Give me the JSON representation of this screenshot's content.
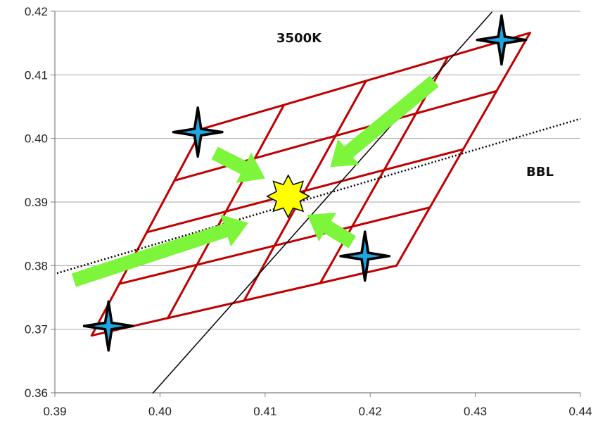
{
  "chart_data": {
    "type": "scatter",
    "title": "",
    "xlabel": "",
    "ylabel": "",
    "xlim": [
      0.39,
      0.44
    ],
    "ylim": [
      0.36,
      0.42
    ],
    "x_ticks": [
      "0.39",
      "0.40",
      "0.41",
      "0.42",
      "0.43",
      "0.44"
    ],
    "y_ticks": [
      "0.42",
      "0.41",
      "0.40",
      "0.39",
      "0.38",
      "0.37",
      "0.36"
    ],
    "grid": "horizontal",
    "annotations": {
      "cct_line_label": "3500K",
      "bbl_label": "BBL"
    },
    "cct_line": {
      "x": [
        0.3993,
        0.4316
      ],
      "y": [
        0.3599,
        0.4199
      ]
    },
    "bbl_line": {
      "x": [
        0.3902,
        0.44
      ],
      "y": [
        0.3788,
        0.4031
      ]
    },
    "quadrilateral_corners": [
      {
        "x": 0.3935,
        "y": 0.369
      },
      {
        "x": 0.4225,
        "y": 0.38
      },
      {
        "x": 0.4352,
        "y": 0.4166
      },
      {
        "x": 0.404,
        "y": 0.4015
      }
    ],
    "subdivisions": 4,
    "star_points": [
      {
        "x": 0.3951,
        "y": 0.3705
      },
      {
        "x": 0.4195,
        "y": 0.3815
      },
      {
        "x": 0.4325,
        "y": 0.4155
      },
      {
        "x": 0.4036,
        "y": 0.401
      }
    ],
    "center_point": {
      "x": 0.4122,
      "y": 0.3909
    },
    "arrows": [
      {
        "from": {
          "x": 0.3918,
          "y": 0.3777
        },
        "to": {
          "x": 0.4084,
          "y": 0.3867
        }
      },
      {
        "from": {
          "x": 0.4261,
          "y": 0.409
        },
        "to": {
          "x": 0.4162,
          "y": 0.3955
        }
      },
      {
        "from": {
          "x": 0.4052,
          "y": 0.3977
        },
        "to": {
          "x": 0.41,
          "y": 0.3937
        }
      },
      {
        "from": {
          "x": 0.4183,
          "y": 0.3837
        },
        "to": {
          "x": 0.414,
          "y": 0.388
        }
      }
    ],
    "colors": {
      "grid": "#a6a6a6",
      "quad": "#c00000",
      "star": "#1fa7e1",
      "arrow": "#7cf53a",
      "center": "#ffff00",
      "cct_line": "#000000",
      "bbl_line": "#000000"
    }
  }
}
